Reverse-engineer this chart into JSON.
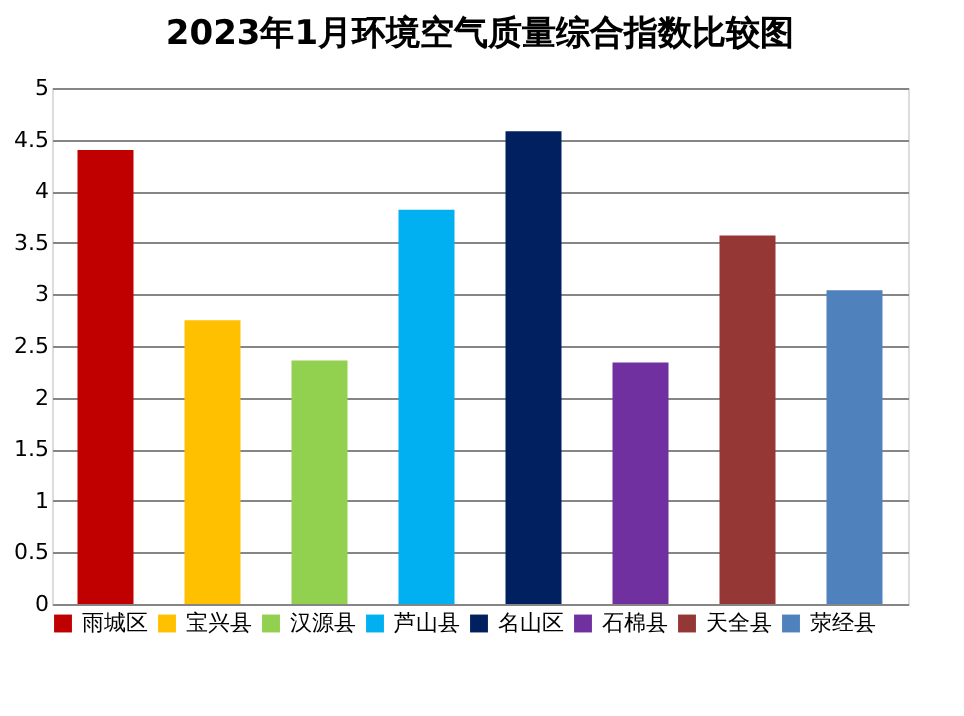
{
  "chart_data": {
    "type": "bar",
    "title": "2023年1月环境空气质量综合指数比较图",
    "categories": [
      null,
      null,
      null,
      null,
      null,
      null,
      null,
      null
    ],
    "series": [
      {
        "name": "雨城区",
        "color": "#c00000",
        "values": [
          4.4,
          null,
          null,
          null,
          null,
          null,
          null,
          null
        ]
      },
      {
        "name": "宝兴县",
        "color": "#ffc000",
        "values": [
          null,
          2.75,
          null,
          null,
          null,
          null,
          null,
          null
        ]
      },
      {
        "name": "汉源县",
        "color": "#92d050",
        "values": [
          null,
          null,
          2.36,
          null,
          null,
          null,
          null,
          null
        ]
      },
      {
        "name": "芦山县",
        "color": "#00b0f0",
        "values": [
          null,
          null,
          null,
          3.82,
          null,
          null,
          null,
          null
        ]
      },
      {
        "name": "名山区",
        "color": "#002060",
        "values": [
          null,
          null,
          null,
          null,
          4.58,
          null,
          null,
          null
        ]
      },
      {
        "name": "石棉县",
        "color": "#7030a0",
        "values": [
          null,
          null,
          null,
          null,
          null,
          2.34,
          null,
          null
        ]
      },
      {
        "name": "天全县",
        "color": "#953735",
        "values": [
          null,
          null,
          null,
          null,
          null,
          null,
          3.57,
          null
        ]
      },
      {
        "name": "荥经县",
        "color": "#4f81bd",
        "values": [
          null,
          null,
          null,
          null,
          null,
          null,
          null,
          3.04
        ]
      }
    ],
    "ylim": [
      0,
      5
    ],
    "yticks": [
      0,
      0.5,
      1,
      1.5,
      2,
      2.5,
      3,
      3.5,
      4,
      4.5,
      5
    ],
    "grid": "y",
    "legend": "bottom",
    "tick_labels": "y"
  }
}
